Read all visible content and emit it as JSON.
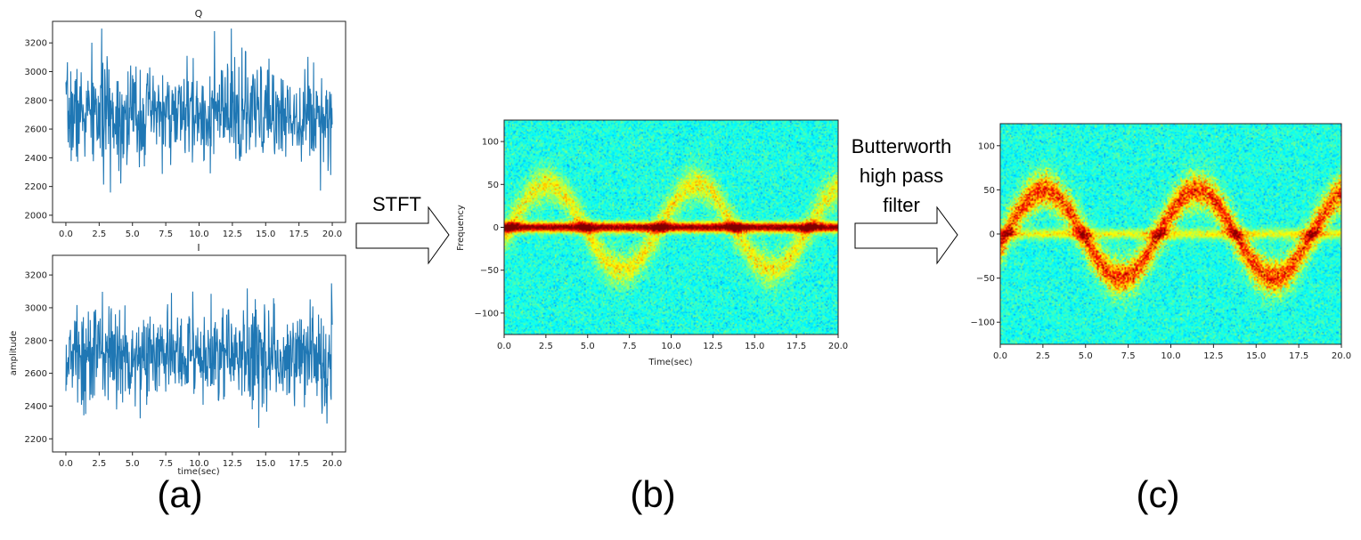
{
  "arrows": {
    "stft_label": "STFT",
    "butterworth_lines": [
      "Butterworth",
      "high pass",
      "filter"
    ]
  },
  "captions": {
    "a": "(a)",
    "b": "(b)",
    "c": "(c)"
  },
  "colors": {
    "signal": "#1f77b4",
    "arrow_stroke": "#000000",
    "arrow_fill": "#ffffff"
  },
  "chart_data": [
    {
      "type": "line",
      "title": "Q",
      "xlabel": "",
      "ylabel": "",
      "xlim": [
        -1,
        21
      ],
      "ylim": [
        1950,
        3350
      ],
      "xticks": [
        "0.0",
        "2.5",
        "5.0",
        "7.5",
        "10.0",
        "12.5",
        "15.0",
        "17.5",
        "20.0"
      ],
      "xtick_values": [
        0,
        2.5,
        5,
        7.5,
        10,
        12.5,
        15,
        17.5,
        20
      ],
      "yticks": [
        "2000",
        "2200",
        "2400",
        "2600",
        "2800",
        "3000",
        "3200"
      ],
      "ytick_values": [
        2000,
        2200,
        2400,
        2600,
        2800,
        3000,
        3200
      ],
      "series": [
        {
          "x_range": [
            0,
            20
          ],
          "mean": 2700,
          "min": 2040,
          "max": 3300,
          "points": 700,
          "seed": 7
        }
      ]
    },
    {
      "type": "line",
      "title": "I",
      "xlabel": "time(sec)",
      "ylabel": "amplitude",
      "xlim": [
        -1,
        21
      ],
      "ylim": [
        2120,
        3320
      ],
      "xticks": [
        "0.0",
        "2.5",
        "5.0",
        "7.5",
        "10.0",
        "12.5",
        "15.0",
        "17.5",
        "20.0"
      ],
      "xtick_values": [
        0,
        2.5,
        5,
        7.5,
        10,
        12.5,
        15,
        17.5,
        20
      ],
      "yticks": [
        "2200",
        "2400",
        "2600",
        "2800",
        "3000",
        "3200"
      ],
      "ytick_values": [
        2200,
        2400,
        2600,
        2800,
        3000,
        3200
      ],
      "series": [
        {
          "x_range": [
            0,
            20
          ],
          "mean": 2710,
          "min": 2180,
          "max": 3260,
          "points": 700,
          "seed": 13
        }
      ]
    },
    {
      "type": "heatmap",
      "title": "",
      "xlabel": "Time(sec)",
      "ylabel": "Frequency",
      "xlim": [
        0,
        20
      ],
      "ylim": [
        -125,
        125
      ],
      "xticks": [
        "0.0",
        "2.5",
        "5.0",
        "7.5",
        "10.0",
        "12.5",
        "15.0",
        "17.5",
        "20.0"
      ],
      "xtick_values": [
        0,
        2.5,
        5,
        7.5,
        10,
        12.5,
        15,
        17.5,
        20
      ],
      "yticks": [
        "100",
        "50",
        "0",
        "−50",
        "−100"
      ],
      "ytick_values": [
        100,
        50,
        0,
        -50,
        -100
      ],
      "dc_band_hz": 0,
      "sinusoid": {
        "amplitude_hz": 50,
        "period_sec": 9,
        "phase_sec": 0.3
      },
      "dc_strength": 1.0,
      "signal_strength": 0.45
    },
    {
      "type": "heatmap",
      "title": "",
      "xlabel": "",
      "ylabel": "",
      "xlim": [
        0,
        20
      ],
      "ylim": [
        -125,
        125
      ],
      "xticks": [
        "0.0",
        "2.5",
        "5.0",
        "7.5",
        "10.0",
        "12.5",
        "15.0",
        "17.5",
        "20.0"
      ],
      "xtick_values": [
        0,
        2.5,
        5,
        7.5,
        10,
        12.5,
        15,
        17.5,
        20
      ],
      "yticks": [
        "100",
        "50",
        "0",
        "−50",
        "−100"
      ],
      "ytick_values": [
        100,
        50,
        0,
        -50,
        -100
      ],
      "dc_band_hz": 0,
      "sinusoid": {
        "amplitude_hz": 50,
        "period_sec": 9,
        "phase_sec": 0.3
      },
      "dc_strength": 0.35,
      "signal_strength": 0.85
    }
  ]
}
